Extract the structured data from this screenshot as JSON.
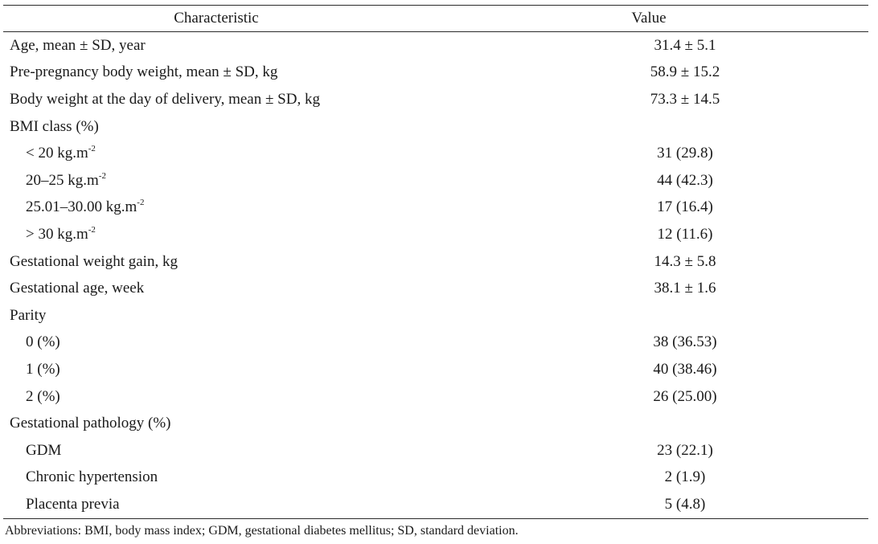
{
  "table": {
    "headers": {
      "characteristic": "Characteristic",
      "value": "Value"
    },
    "rows": [
      {
        "label": "Age, mean ± SD, year",
        "sup": "",
        "indent": false,
        "value": "31.4 ± 5.1"
      },
      {
        "label": "Pre-pregnancy body weight, mean ± SD, kg",
        "sup": "",
        "indent": false,
        "value": "58.9 ± 15.2"
      },
      {
        "label": "Body weight at the day of delivery, mean ± SD, kg",
        "sup": "",
        "indent": false,
        "value": "73.3 ± 14.5"
      },
      {
        "label": "BMI class (%)",
        "sup": "",
        "indent": false,
        "value": ""
      },
      {
        "label": "< 20 kg.m",
        "sup": "-2",
        "indent": true,
        "value": "31 (29.8)"
      },
      {
        "label": "20–25 kg.m",
        "sup": "-2",
        "indent": true,
        "value": "44 (42.3)"
      },
      {
        "label": "25.01–30.00 kg.m",
        "sup": "-2",
        "indent": true,
        "value": "17 (16.4)"
      },
      {
        "label": "> 30 kg.m",
        "sup": "-2",
        "indent": true,
        "value": "12 (11.6)"
      },
      {
        "label": "Gestational weight gain, kg",
        "sup": "",
        "indent": false,
        "value": "14.3 ± 5.8"
      },
      {
        "label": "Gestational age, week",
        "sup": "",
        "indent": false,
        "value": "38.1 ± 1.6"
      },
      {
        "label": "Parity",
        "sup": "",
        "indent": false,
        "value": ""
      },
      {
        "label": "0 (%)",
        "sup": "",
        "indent": true,
        "value": "38 (36.53)"
      },
      {
        "label": "1 (%)",
        "sup": "",
        "indent": true,
        "value": "40 (38.46)"
      },
      {
        "label": "2 (%)",
        "sup": "",
        "indent": true,
        "value": "26 (25.00)"
      },
      {
        "label": "Gestational pathology (%)",
        "sup": "",
        "indent": false,
        "value": ""
      },
      {
        "label": "GDM",
        "sup": "",
        "indent": true,
        "value": "23 (22.1)"
      },
      {
        "label": "Chronic hypertension",
        "sup": "",
        "indent": true,
        "value": "2 (1.9)"
      },
      {
        "label": "Placenta previa",
        "sup": "",
        "indent": true,
        "value": "5 (4.8)"
      }
    ]
  },
  "footnote": "Abbreviations: BMI, body mass index; GDM, gestational diabetes mellitus; SD, standard deviation."
}
